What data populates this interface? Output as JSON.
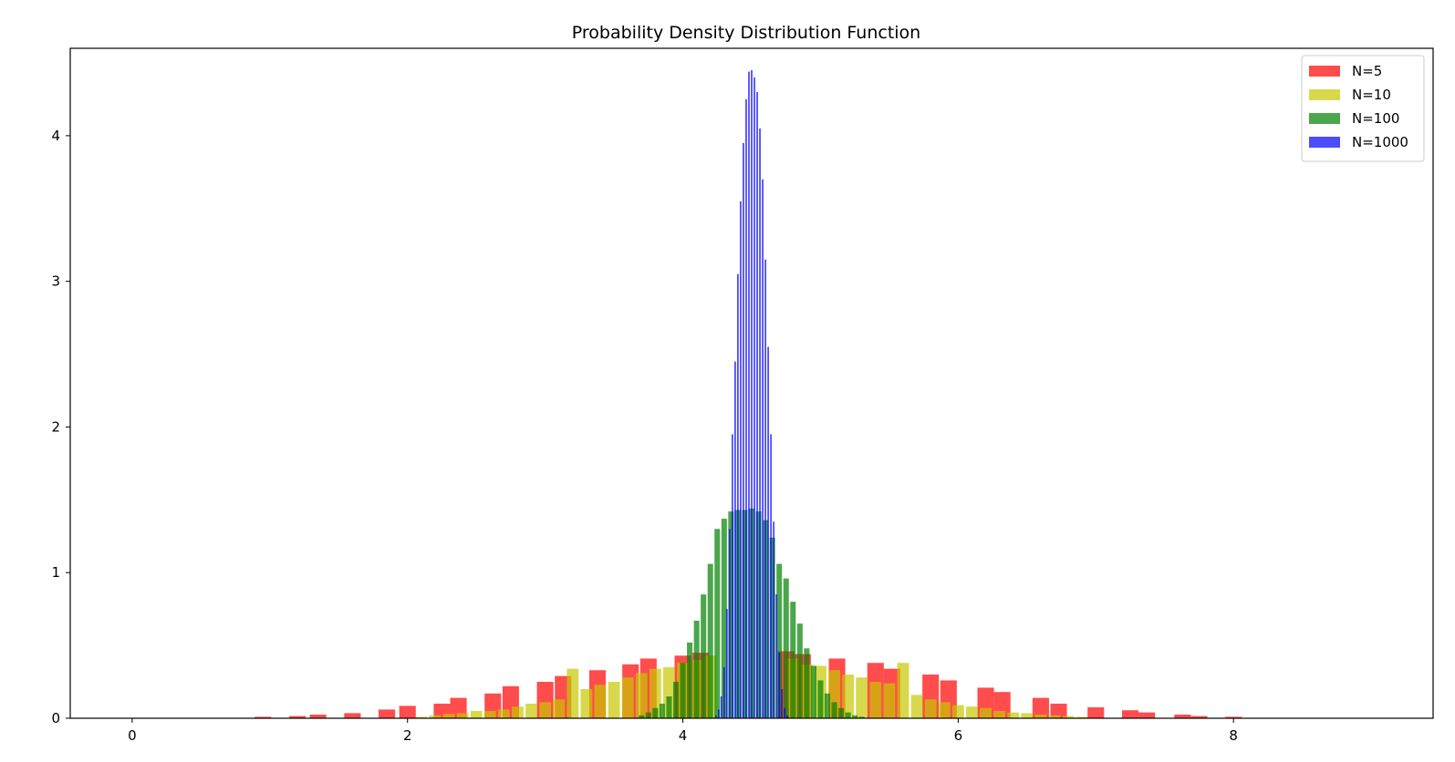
{
  "chart_data": {
    "type": "bar",
    "title": "Probability Density Distribution Function",
    "xlabel": "",
    "ylabel": "",
    "xlim": [
      -0.45,
      9.45
    ],
    "ylim": [
      0,
      4.6
    ],
    "x_ticks": [
      0,
      2,
      4,
      6,
      8
    ],
    "y_ticks": [
      0,
      1,
      2,
      3,
      4
    ],
    "legend_position": "top-right",
    "grid": false,
    "series": [
      {
        "name": "N=5",
        "color": "#ff0000",
        "opacity": 0.7,
        "bin_width": 0.12,
        "x": [
          0.95,
          1.2,
          1.35,
          1.6,
          1.85,
          2.0,
          2.25,
          2.37,
          2.62,
          2.75,
          3.0,
          3.13,
          3.38,
          3.62,
          3.75,
          4.0,
          4.13,
          4.75,
          4.87,
          5.12,
          5.4,
          5.52,
          5.8,
          5.93,
          6.2,
          6.32,
          6.6,
          6.73,
          7.0,
          7.25,
          7.37,
          7.63,
          7.75,
          8.0
        ],
        "values": [
          0.01,
          0.015,
          0.025,
          0.035,
          0.06,
          0.085,
          0.1,
          0.14,
          0.17,
          0.22,
          0.25,
          0.29,
          0.33,
          0.37,
          0.41,
          0.43,
          0.45,
          0.46,
          0.44,
          0.41,
          0.38,
          0.34,
          0.3,
          0.26,
          0.21,
          0.18,
          0.14,
          0.1,
          0.075,
          0.055,
          0.04,
          0.025,
          0.015,
          0.01
        ]
      },
      {
        "name": "N=10",
        "color": "#c8c800",
        "opacity": 0.7,
        "bin_width": 0.085,
        "x": [
          2.1,
          2.2,
          2.3,
          2.4,
          2.5,
          2.6,
          2.7,
          2.8,
          2.9,
          3.0,
          3.1,
          3.2,
          3.3,
          3.4,
          3.5,
          3.6,
          3.7,
          3.8,
          3.9,
          4.0,
          4.1,
          4.2,
          4.8,
          4.9,
          5.0,
          5.1,
          5.2,
          5.3,
          5.4,
          5.5,
          5.6,
          5.7,
          5.8,
          5.9,
          6.0,
          6.1,
          6.2,
          6.3,
          6.4,
          6.5,
          6.6,
          6.7,
          6.8,
          6.9
        ],
        "values": [
          0.01,
          0.02,
          0.03,
          0.035,
          0.05,
          0.05,
          0.06,
          0.08,
          0.1,
          0.11,
          0.13,
          0.34,
          0.2,
          0.23,
          0.25,
          0.28,
          0.31,
          0.34,
          0.35,
          0.38,
          0.4,
          0.43,
          0.41,
          0.37,
          0.36,
          0.33,
          0.3,
          0.28,
          0.25,
          0.24,
          0.38,
          0.16,
          0.13,
          0.11,
          0.09,
          0.08,
          0.07,
          0.05,
          0.04,
          0.035,
          0.025,
          0.02,
          0.015,
          0.01
        ]
      },
      {
        "name": "N=100",
        "color": "#008000",
        "opacity": 0.7,
        "bin_width": 0.04,
        "x": [
          3.7,
          3.75,
          3.8,
          3.85,
          3.9,
          3.95,
          4.0,
          4.05,
          4.1,
          4.15,
          4.2,
          4.25,
          4.3,
          4.35,
          4.4,
          4.45,
          4.5,
          4.55,
          4.6,
          4.65,
          4.7,
          4.75,
          4.8,
          4.85,
          4.9,
          4.95,
          5.0,
          5.05,
          5.1,
          5.15,
          5.2,
          5.25,
          5.3
        ],
        "values": [
          0.02,
          0.04,
          0.07,
          0.1,
          0.15,
          0.25,
          0.38,
          0.52,
          0.67,
          0.85,
          1.06,
          1.3,
          1.37,
          1.42,
          1.43,
          1.43,
          1.44,
          1.42,
          1.36,
          1.24,
          1.06,
          0.96,
          0.8,
          0.65,
          0.48,
          0.36,
          0.26,
          0.17,
          0.11,
          0.07,
          0.04,
          0.02,
          0.01
        ]
      },
      {
        "name": "N=1000",
        "color": "#0000ff",
        "opacity": 0.7,
        "bin_width": 0.012,
        "x": [
          4.24,
          4.26,
          4.28,
          4.3,
          4.32,
          4.34,
          4.36,
          4.38,
          4.4,
          4.42,
          4.44,
          4.46,
          4.48,
          4.5,
          4.52,
          4.54,
          4.56,
          4.58,
          4.6,
          4.62,
          4.64,
          4.66,
          4.68,
          4.7,
          4.72,
          4.74,
          4.76
        ],
        "values": [
          0.02,
          0.06,
          0.15,
          0.35,
          0.75,
          1.3,
          1.95,
          2.45,
          3.05,
          3.55,
          3.95,
          4.25,
          4.44,
          4.45,
          4.4,
          4.3,
          4.05,
          3.7,
          3.15,
          2.55,
          1.95,
          1.35,
          0.85,
          0.45,
          0.2,
          0.07,
          0.02
        ]
      }
    ]
  }
}
